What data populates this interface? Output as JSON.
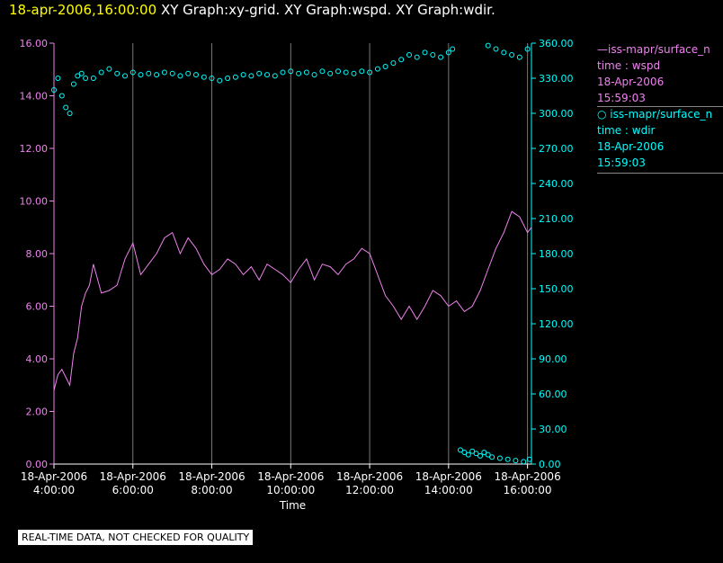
{
  "title": {
    "date": "18-apr-2006,16:00:00",
    "graphs": "XY Graph:xy-grid.  XY Graph:wspd.  XY Graph:wdir."
  },
  "legend": {
    "wspd": {
      "series": "iss-mapr/surface_n",
      "var": "time : wspd",
      "date": "18-Apr-2006",
      "time": "15:59:03",
      "color": "#ee82ee"
    },
    "wdir": {
      "series": "iss-mapr/surface_n",
      "var": "time : wdir",
      "date": "18-Apr-2006",
      "time": "15:59:03",
      "color": "#00ffff"
    }
  },
  "note": "REAL-TIME DATA, NOT CHECKED FOR QUALITY",
  "chart_data": {
    "type": "line",
    "xlabel": "Time",
    "x_ticks": [
      {
        "t": 4,
        "date": "18-Apr-2006",
        "time": "4:00:00"
      },
      {
        "t": 6,
        "date": "18-Apr-2006",
        "time": "6:00:00"
      },
      {
        "t": 8,
        "date": "18-Apr-2006",
        "time": "8:00:00"
      },
      {
        "t": 10,
        "date": "18-Apr-2006",
        "time": "10:00:00"
      },
      {
        "t": 12,
        "date": "18-Apr-2006",
        "time": "12:00:00"
      },
      {
        "t": 14,
        "date": "18-Apr-2006",
        "time": "14:00:00"
      },
      {
        "t": 16,
        "date": "18-Apr-2006",
        "time": "16:00:00"
      }
    ],
    "xlim": [
      4,
      16.1
    ],
    "left_axis": {
      "ylim": [
        0,
        16
      ],
      "ticks": [
        "0.00",
        "2.00",
        "4.00",
        "6.00",
        "8.00",
        "10.00",
        "12.00",
        "14.00",
        "16.00"
      ],
      "color": "#ee82ee"
    },
    "right_axis": {
      "ylim": [
        0,
        360
      ],
      "ticks": [
        "0.00",
        "30.00",
        "60.00",
        "90.00",
        "120.00",
        "150.00",
        "180.00",
        "210.00",
        "240.00",
        "270.00",
        "300.00",
        "330.00",
        "360.00"
      ],
      "color": "#00ffff"
    },
    "grid": "vertical",
    "series": [
      {
        "key": "wspd",
        "axis": "left",
        "style": "line",
        "color": "#ee82ee",
        "x": [
          4.0,
          4.1,
          4.2,
          4.3,
          4.4,
          4.5,
          4.6,
          4.7,
          4.8,
          4.9,
          5.0,
          5.2,
          5.4,
          5.6,
          5.8,
          6.0,
          6.2,
          6.4,
          6.6,
          6.8,
          7.0,
          7.2,
          7.4,
          7.6,
          7.8,
          8.0,
          8.2,
          8.4,
          8.6,
          8.8,
          9.0,
          9.2,
          9.4,
          9.6,
          9.8,
          10.0,
          10.2,
          10.4,
          10.6,
          10.8,
          11.0,
          11.2,
          11.4,
          11.6,
          11.8,
          12.0,
          12.2,
          12.4,
          12.6,
          12.8,
          13.0,
          13.2,
          13.4,
          13.6,
          13.8,
          14.0,
          14.2,
          14.4,
          14.6,
          14.8,
          15.0,
          15.2,
          15.4,
          15.6,
          15.8,
          16.0,
          16.1
        ],
        "y": [
          2.8,
          3.4,
          3.6,
          3.3,
          3.0,
          4.2,
          4.8,
          6.0,
          6.5,
          6.8,
          7.6,
          6.5,
          6.6,
          6.8,
          7.8,
          8.4,
          7.2,
          7.6,
          8.0,
          8.6,
          8.8,
          8.0,
          8.6,
          8.2,
          7.6,
          7.2,
          7.4,
          7.8,
          7.6,
          7.2,
          7.5,
          7.0,
          7.6,
          7.4,
          7.2,
          6.9,
          7.4,
          7.8,
          7.0,
          7.6,
          7.5,
          7.2,
          7.6,
          7.8,
          8.2,
          8.0,
          7.2,
          6.4,
          6.0,
          5.5,
          6.0,
          5.5,
          6.0,
          6.6,
          6.4,
          6.0,
          6.2,
          5.8,
          6.0,
          6.6,
          7.4,
          8.2,
          8.8,
          9.6,
          9.4,
          8.8,
          9.0
        ]
      },
      {
        "key": "wdir",
        "axis": "right",
        "style": "scatter",
        "color": "#00ffff",
        "x": [
          4.0,
          4.1,
          4.2,
          4.3,
          4.4,
          4.5,
          4.6,
          4.7,
          4.8,
          5.0,
          5.2,
          5.4,
          5.6,
          5.8,
          6.0,
          6.2,
          6.4,
          6.6,
          6.8,
          7.0,
          7.2,
          7.4,
          7.6,
          7.8,
          8.0,
          8.2,
          8.4,
          8.6,
          8.8,
          9.0,
          9.2,
          9.4,
          9.6,
          9.8,
          10.0,
          10.2,
          10.4,
          10.6,
          10.8,
          11.0,
          11.2,
          11.4,
          11.6,
          11.8,
          12.0,
          12.2,
          12.4,
          12.6,
          12.8,
          13.0,
          13.2,
          13.4,
          13.6,
          13.8,
          14.0,
          14.1,
          15.0,
          15.2,
          15.4,
          15.6,
          15.8,
          16.0,
          14.3,
          14.4,
          14.5,
          14.6,
          14.7,
          14.8,
          14.9,
          15.0,
          15.1,
          15.3,
          15.5,
          15.7,
          15.9,
          16.05
        ],
        "y": [
          320,
          330,
          315,
          305,
          300,
          325,
          332,
          334,
          330,
          330,
          335,
          338,
          334,
          332,
          335,
          333,
          334,
          333,
          335,
          334,
          332,
          334,
          333,
          331,
          330,
          328,
          330,
          331,
          333,
          332,
          334,
          333,
          332,
          335,
          336,
          334,
          335,
          333,
          336,
          334,
          336,
          335,
          334,
          336,
          335,
          338,
          340,
          343,
          346,
          350,
          348,
          352,
          350,
          348,
          352,
          355,
          358,
          355,
          352,
          350,
          348,
          355,
          12,
          10,
          8,
          11,
          9,
          7,
          10,
          8,
          6,
          5,
          4,
          3,
          2,
          4
        ]
      }
    ]
  }
}
